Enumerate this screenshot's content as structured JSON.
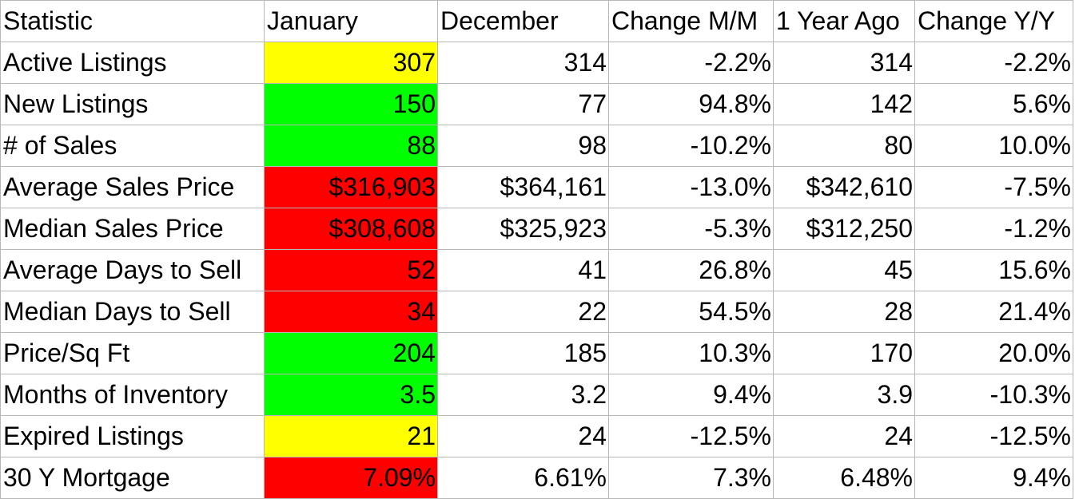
{
  "chart_data": {
    "type": "table",
    "columns": [
      "Statistic",
      "January",
      "December",
      "Change M/M",
      "1 Year Ago",
      "Change Y/Y"
    ],
    "rows": [
      {
        "statistic": "Active Listings",
        "january": "307",
        "january_status": "yellow",
        "december": "314",
        "change_mm": "-2.2%",
        "year_ago": "314",
        "change_yy": "-2.2%"
      },
      {
        "statistic": "New Listings",
        "january": "150",
        "january_status": "green",
        "december": "77",
        "change_mm": "94.8%",
        "year_ago": "142",
        "change_yy": "5.6%"
      },
      {
        "statistic": "# of Sales",
        "january": "88",
        "january_status": "green",
        "december": "98",
        "change_mm": "-10.2%",
        "year_ago": "80",
        "change_yy": "10.0%"
      },
      {
        "statistic": "Average Sales Price",
        "january": "$316,903",
        "january_status": "red",
        "december": "$364,161",
        "change_mm": "-13.0%",
        "year_ago": "$342,610",
        "change_yy": "-7.5%"
      },
      {
        "statistic": "Median Sales Price",
        "january": "$308,608",
        "january_status": "red",
        "december": "$325,923",
        "change_mm": "-5.3%",
        "year_ago": "$312,250",
        "change_yy": "-1.2%"
      },
      {
        "statistic": "Average Days to Sell",
        "january": "52",
        "january_status": "red",
        "december": "41",
        "change_mm": "26.8%",
        "year_ago": "45",
        "change_yy": "15.6%"
      },
      {
        "statistic": "Median Days to Sell",
        "january": "34",
        "january_status": "red",
        "december": "22",
        "change_mm": "54.5%",
        "year_ago": "28",
        "change_yy": "21.4%"
      },
      {
        "statistic": "Price/Sq Ft",
        "january": "204",
        "january_status": "green",
        "december": "185",
        "change_mm": "10.3%",
        "year_ago": "170",
        "change_yy": "20.0%"
      },
      {
        "statistic": "Months of Inventory",
        "january": "3.5",
        "january_status": "green",
        "december": "3.2",
        "change_mm": "9.4%",
        "year_ago": "3.9",
        "change_yy": "-10.3%"
      },
      {
        "statistic": "Expired Listings",
        "january": "21",
        "january_status": "yellow",
        "december": "24",
        "change_mm": "-12.5%",
        "year_ago": "24",
        "change_yy": "-12.5%"
      },
      {
        "statistic": "30 Y Mortgage",
        "january": "7.09%",
        "january_status": "red",
        "december": "6.61%",
        "change_mm": "7.3%",
        "year_ago": "6.48%",
        "change_yy": "9.4%"
      }
    ]
  },
  "colors": {
    "yellow": "#ffff00",
    "green": "#00ff00",
    "red": "#ff0000",
    "gridline": "#b7b7b7"
  }
}
